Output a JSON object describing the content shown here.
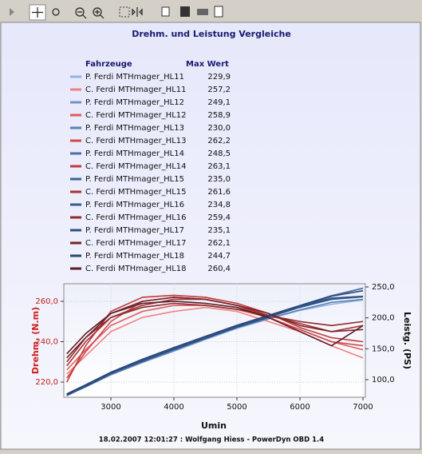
{
  "chart_data": {
    "type": "line",
    "title": "Drehm. und Leistung Vergleiche",
    "legend_title": "Fahrzeuge",
    "legend_value_title": "Max Wert",
    "x_label": "Umin",
    "y_label": "Drehm. (N.m)",
    "y2_label": "Leistg. (PS)",
    "footer": "18.02.2007 12:01:27 : Wolfgang Hiess - PowerDyn OBD 1.4",
    "grid": true,
    "x": [
      2300,
      2600,
      3000,
      3500,
      4000,
      4500,
      5000,
      5500,
      6000,
      6500,
      7000
    ],
    "xlim": [
      2253,
      7038
    ],
    "xticks": [
      3000,
      4000,
      5000,
      6000,
      7000
    ],
    "ylim": [
      212.5,
      268.7
    ],
    "yticks": [
      {
        "value": 220,
        "label": "220,0"
      },
      {
        "value": 240,
        "label": "240,0"
      },
      {
        "value": 260,
        "label": "260,0"
      }
    ],
    "y2lim": [
      71.6,
      255.2
    ],
    "y2ticks": [
      {
        "value": 100,
        "label": "100,0"
      },
      {
        "value": 150,
        "label": "150,0"
      },
      {
        "value": 200,
        "label": "200,0"
      },
      {
        "value": 250,
        "label": "250,0"
      }
    ],
    "series": [
      {
        "name": "P. Ferdi MTHmager_HL11",
        "color": "#8fb4e0",
        "axis": "y2",
        "max": {
          "value": 229.9,
          "label": "229,9"
        },
        "values": [
          75,
          88,
          108,
          128,
          146,
          165,
          183,
          198,
          212,
          222,
          229
        ]
      },
      {
        "name": "C. Ferdi MTHmager_HL11",
        "color": "#f08080",
        "axis": "y",
        "max": {
          "value": 257.2,
          "label": "257,2"
        },
        "values": [
          224,
          233,
          245,
          252,
          255,
          257,
          255,
          250,
          245,
          238,
          232
        ]
      },
      {
        "name": "P. Ferdi MTHmager_HL12",
        "color": "#6f94c8",
        "axis": "y2",
        "max": {
          "value": 249.1,
          "label": "249,1"
        },
        "values": [
          76,
          90,
          110,
          131,
          150,
          168,
          186,
          202,
          218,
          235,
          248
        ]
      },
      {
        "name": "C. Ferdi MTHmager_HL12",
        "color": "#e05a5a",
        "axis": "y",
        "max": {
          "value": 258.9,
          "label": "258,9"
        },
        "values": [
          226,
          236,
          248,
          255,
          258,
          258,
          256,
          252,
          246,
          240,
          236
        ]
      },
      {
        "name": "P. Ferdi MTHmager_HL13",
        "color": "#5a7fb5",
        "axis": "y2",
        "max": {
          "value": 230.0,
          "label": "230,0"
        },
        "values": [
          74,
          89,
          108,
          128,
          147,
          166,
          184,
          199,
          213,
          225,
          230
        ]
      },
      {
        "name": "C. Ferdi MTHmager_HL13",
        "color": "#d04848",
        "axis": "y",
        "max": {
          "value": 262.2,
          "label": "262,2"
        },
        "values": [
          222,
          235,
          250,
          260,
          262,
          261,
          258,
          252,
          246,
          240,
          238
        ]
      },
      {
        "name": "P. Ferdi MTHmager_HL14",
        "color": "#4a6ea5",
        "axis": "y2",
        "max": {
          "value": 248.5,
          "label": "248,5"
        },
        "values": [
          77,
          92,
          112,
          133,
          152,
          170,
          188,
          204,
          220,
          236,
          248
        ]
      },
      {
        "name": "C. Ferdi MTHmager_HL14",
        "color": "#c03a3a",
        "axis": "y",
        "max": {
          "value": 263.1,
          "label": "263,1"
        },
        "values": [
          220,
          238,
          255,
          262,
          263,
          262,
          259,
          254,
          247,
          242,
          240
        ]
      },
      {
        "name": "P. Ferdi MTHmager_HL15",
        "color": "#3e6196",
        "axis": "y2",
        "max": {
          "value": 235.0,
          "label": "235,0"
        },
        "values": [
          75,
          89,
          110,
          131,
          150,
          168,
          186,
          202,
          218,
          230,
          234
        ]
      },
      {
        "name": "C. Ferdi MTHmager_HL15",
        "color": "#a83232",
        "axis": "y",
        "max": {
          "value": 261.6,
          "label": "261,6"
        },
        "values": [
          228,
          240,
          252,
          258,
          261,
          261,
          258,
          253,
          249,
          245,
          248
        ]
      },
      {
        "name": "P. Ferdi MTHmager_HL16",
        "color": "#37598c",
        "axis": "y2",
        "max": {
          "value": 234.8,
          "label": "234,8"
        },
        "values": [
          76,
          90,
          111,
          132,
          151,
          169,
          187,
          203,
          219,
          232,
          235
        ]
      },
      {
        "name": "C. Ferdi MTHmager_HL16",
        "color": "#902a2a",
        "axis": "y",
        "max": {
          "value": 259.4,
          "label": "259,4"
        },
        "values": [
          230,
          242,
          252,
          257,
          259,
          258,
          256,
          253,
          250,
          248,
          250
        ]
      },
      {
        "name": "P. Ferdi MTHmager_HL17",
        "color": "#2f5083",
        "axis": "y2",
        "max": {
          "value": 235.1,
          "label": "235,1"
        },
        "values": [
          75,
          89,
          110,
          130,
          149,
          167,
          185,
          201,
          217,
          230,
          235
        ]
      },
      {
        "name": "C. Ferdi MTHmager_HL17",
        "color": "#762428",
        "axis": "y",
        "max": {
          "value": 262.1,
          "label": "262,1"
        },
        "values": [
          232,
          242,
          254,
          260,
          262,
          261,
          258,
          254,
          248,
          245,
          246
        ]
      },
      {
        "name": "P. Ferdi MTHmager_HL18",
        "color": "#2a4676",
        "axis": "y2",
        "max": {
          "value": 244.7,
          "label": "244,7"
        },
        "values": [
          77,
          91,
          112,
          133,
          152,
          170,
          188,
          204,
          220,
          235,
          244
        ]
      },
      {
        "name": "C. Ferdi MTHmager_HL18",
        "color": "#5e1c22",
        "axis": "y",
        "max": {
          "value": 260.4,
          "label": "260,4"
        },
        "values": [
          234,
          244,
          254,
          259,
          260,
          259,
          257,
          252,
          245,
          238,
          248
        ]
      }
    ]
  }
}
